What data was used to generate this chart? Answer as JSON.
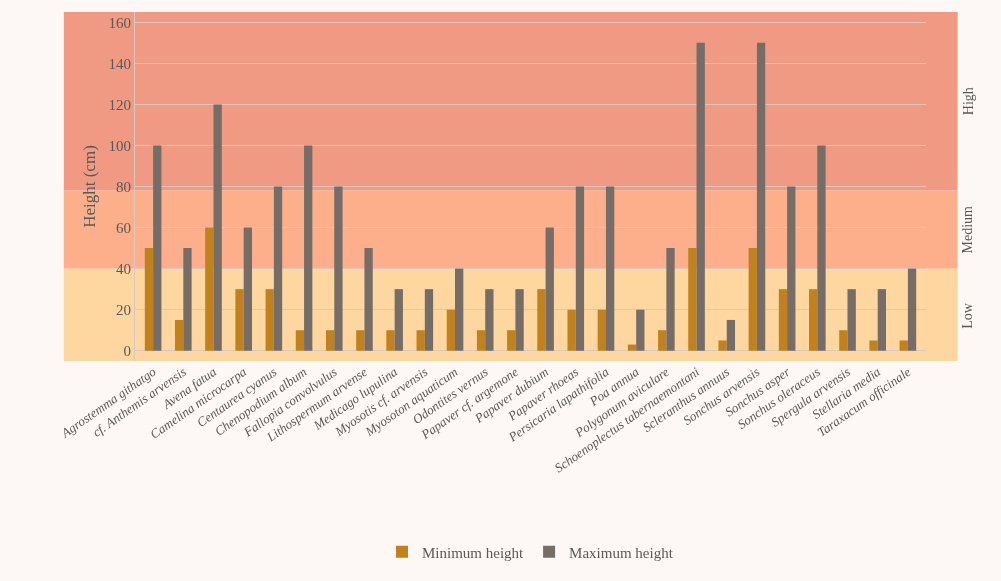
{
  "chart_data": {
    "type": "bar",
    "ylabel": "Height (cm)",
    "categories": [
      "Agrostemma githatgo",
      "cf. Anthemis arvensis",
      "Avena fatua",
      "Camelina microcarpa",
      "Centaurea cyanus",
      "Chenopodium album",
      "Fallopia convolvulus",
      "Lithospermum arvense",
      "Medicago lupulina",
      "Myosotis cf. arvensis",
      "Myosoton aquaticum",
      "Odontites vernus",
      "Papaver cf. argemone",
      "Papaver dubium",
      "Papaver rhoeas",
      "Persicaria lapathifolia",
      "Poa annua",
      "Polygonum aviculare",
      "Schoenoplectus tabernaemontani",
      "Scleranthus annuus",
      "Sonchus arvensis",
      "Sonchus asper",
      "Sonchus oleraceus",
      "Spergula arvensis",
      "Stellaria media",
      "Taraxacum officinale"
    ],
    "series": [
      {
        "name": "Minimum height",
        "color": "#c0821e",
        "values": [
          50,
          15,
          60,
          30,
          30,
          10,
          10,
          10,
          10,
          10,
          20,
          10,
          10,
          30,
          20,
          20,
          3,
          10,
          50,
          5,
          50,
          30,
          30,
          10,
          5,
          5
        ]
      },
      {
        "name": "Maximum height",
        "color": "#756d66",
        "values": [
          100,
          50,
          120,
          60,
          80,
          100,
          80,
          50,
          30,
          30,
          40,
          30,
          30,
          60,
          80,
          80,
          20,
          50,
          150,
          15,
          150,
          80,
          100,
          30,
          30,
          40
        ]
      }
    ],
    "ylim": [
      -5,
      165
    ],
    "yticks": [
      0,
      20,
      40,
      60,
      80,
      100,
      120,
      140,
      160
    ],
    "grid": "y",
    "legend": "bottom",
    "bands": [
      {
        "axis": "y",
        "from": -5,
        "to": 40,
        "label": "Low",
        "color": "#fed7a0"
      },
      {
        "axis": "y",
        "from": 40,
        "to": 78,
        "label": "Medium",
        "color": "#fdae8a"
      },
      {
        "axis": "y",
        "from": 78,
        "to": 165,
        "label": "High",
        "color": "#f09a84"
      }
    ]
  }
}
